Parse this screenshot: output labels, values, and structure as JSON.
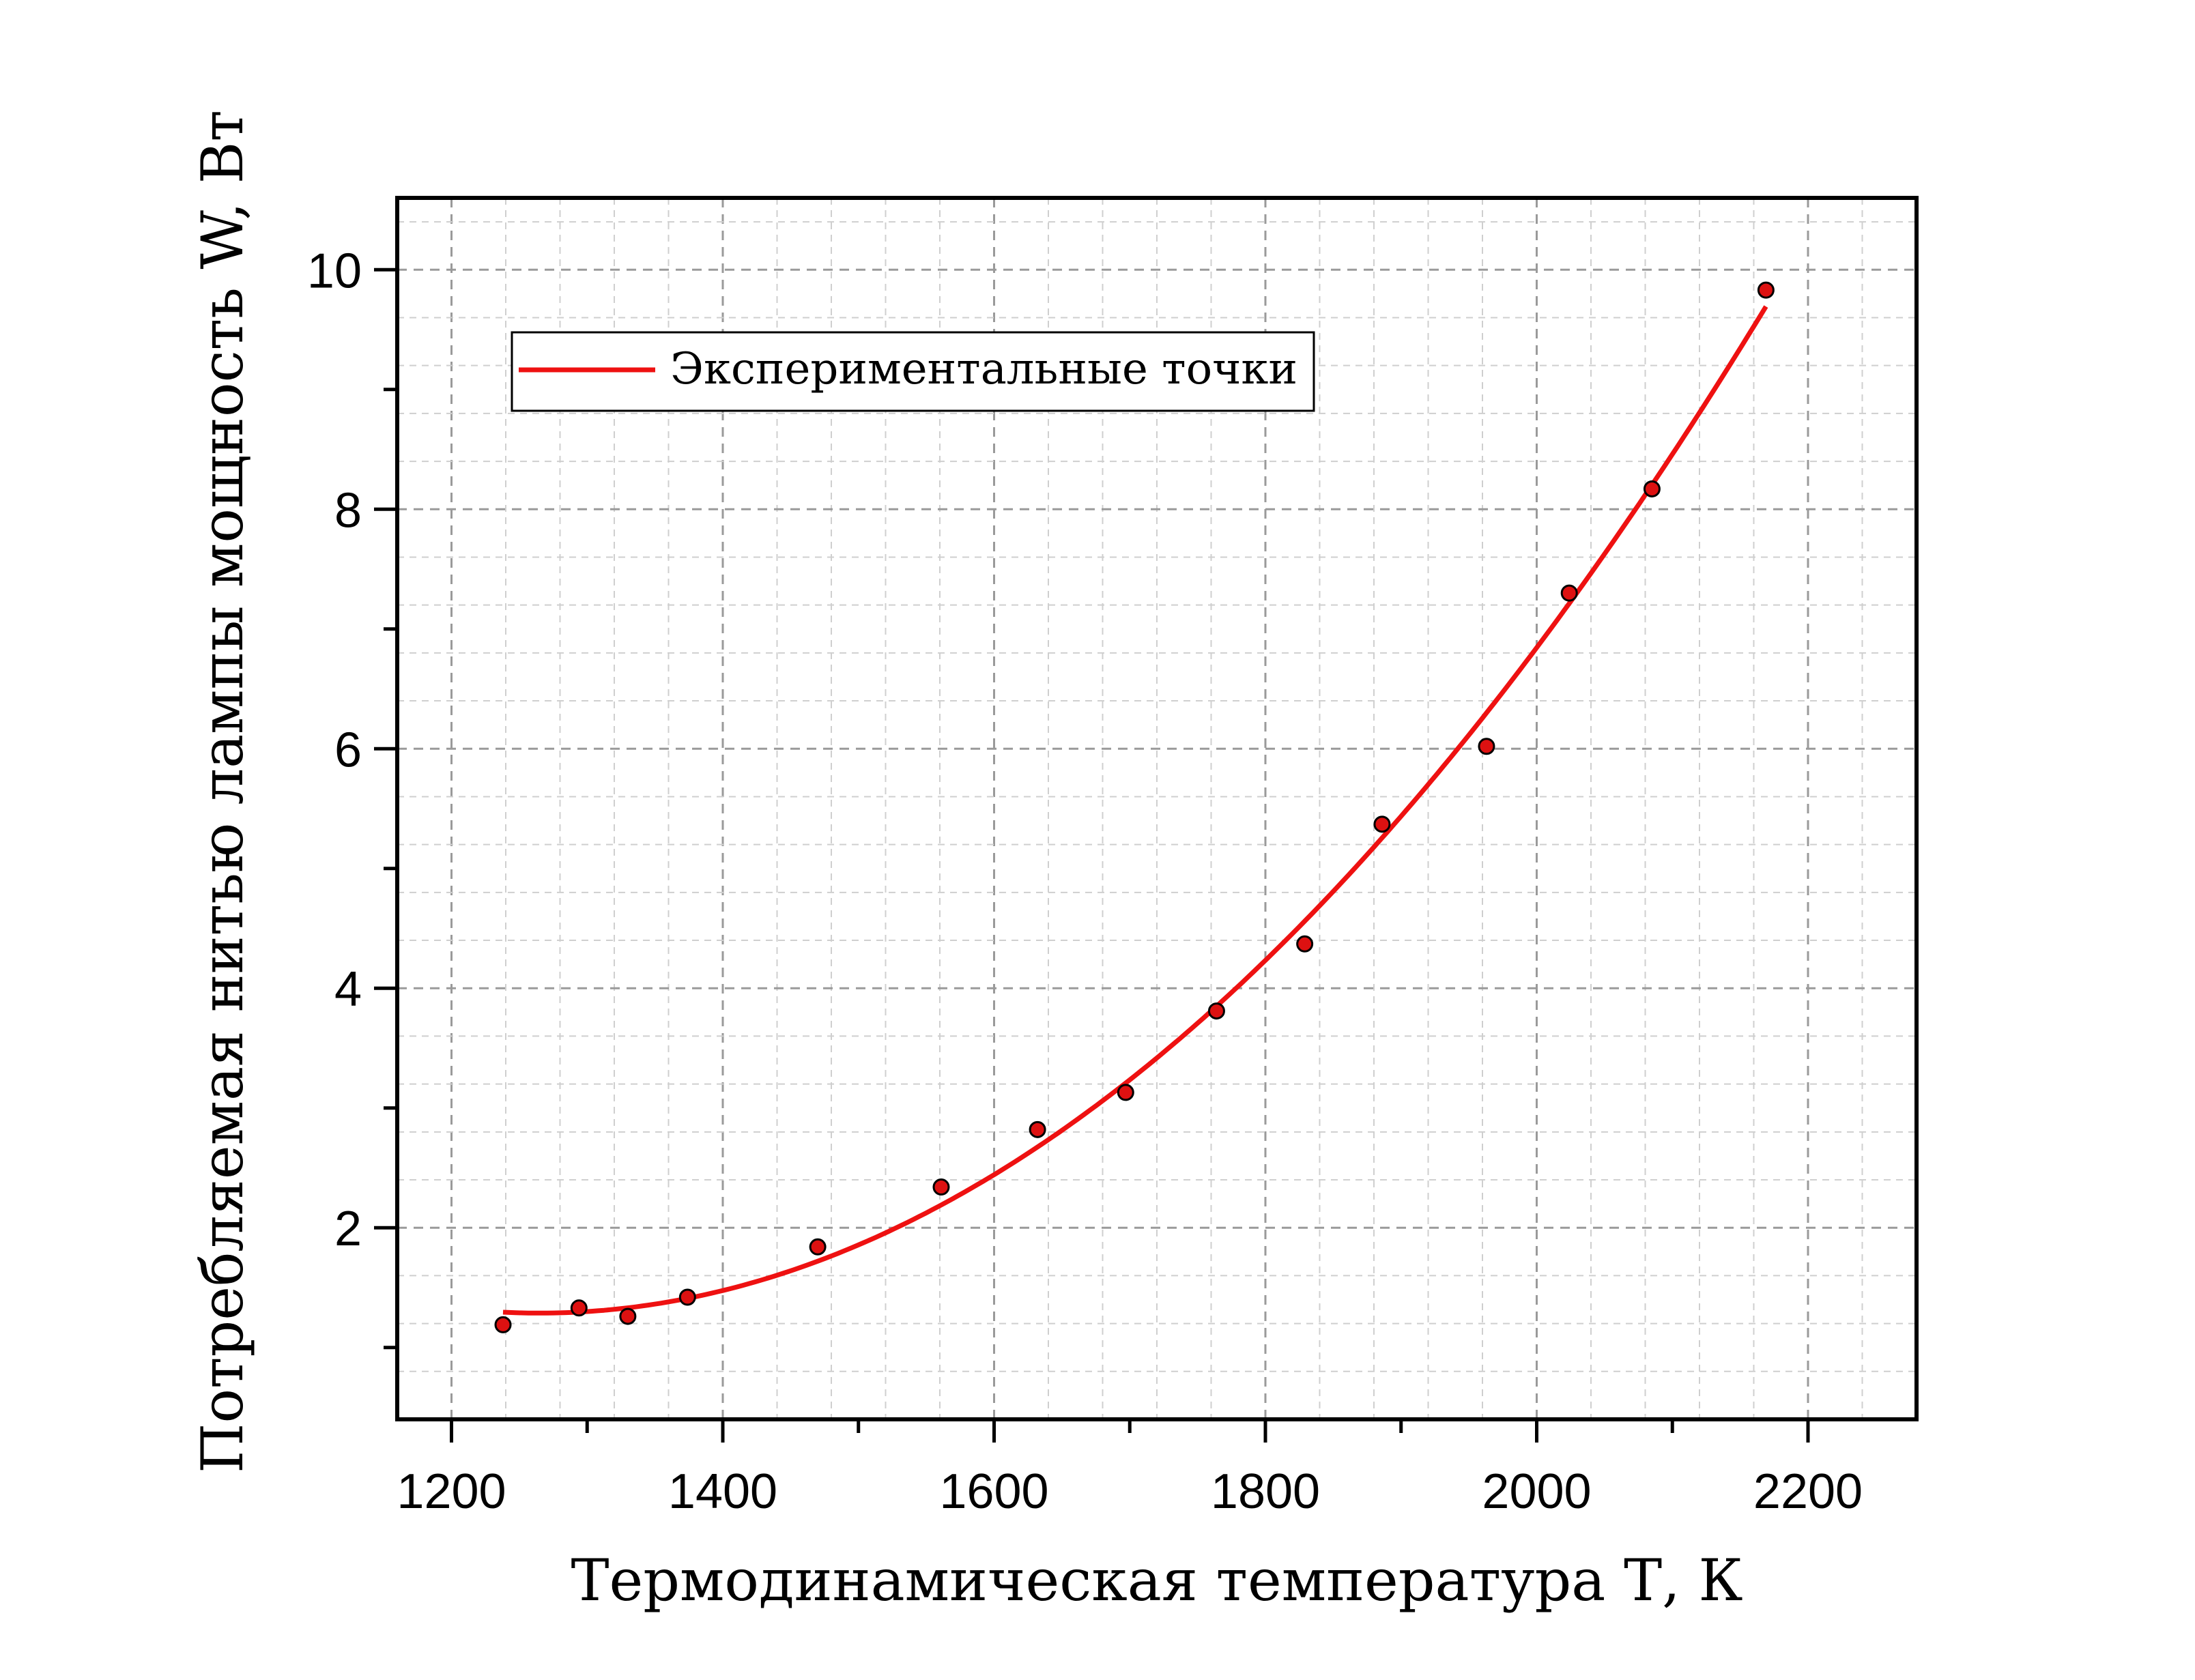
{
  "chart_data": {
    "type": "scatter",
    "title": "",
    "xlabel": "Термодинамическая температура Т, К",
    "ylabel": "Потребляемая нитью лампы мощность W, Вт",
    "xlim": [
      1160,
      2280
    ],
    "ylim": [
      0.4,
      10.6
    ],
    "xticks": [
      1200,
      1400,
      1600,
      1800,
      2000,
      2200
    ],
    "yticks": [
      2,
      4,
      6,
      8,
      10
    ],
    "grid": true,
    "legend_position": "top-left",
    "colors": {
      "line": "#ee1111",
      "marker_fill": "#dd1111",
      "marker_edge": "#000000",
      "grid": "#bbbbbb"
    },
    "series": [
      {
        "name": "Экспериментальные точки",
        "marker": "circle",
        "x": [
          1238,
          1294,
          1330,
          1374,
          1470,
          1561,
          1632,
          1697,
          1764,
          1829,
          1886,
          1963,
          2024,
          2085,
          2169
        ],
        "y": [
          1.19,
          1.33,
          1.26,
          1.42,
          1.84,
          2.34,
          2.82,
          3.13,
          3.81,
          4.37,
          5.37,
          6.02,
          7.3,
          8.17,
          9.83
        ]
      }
    ]
  }
}
